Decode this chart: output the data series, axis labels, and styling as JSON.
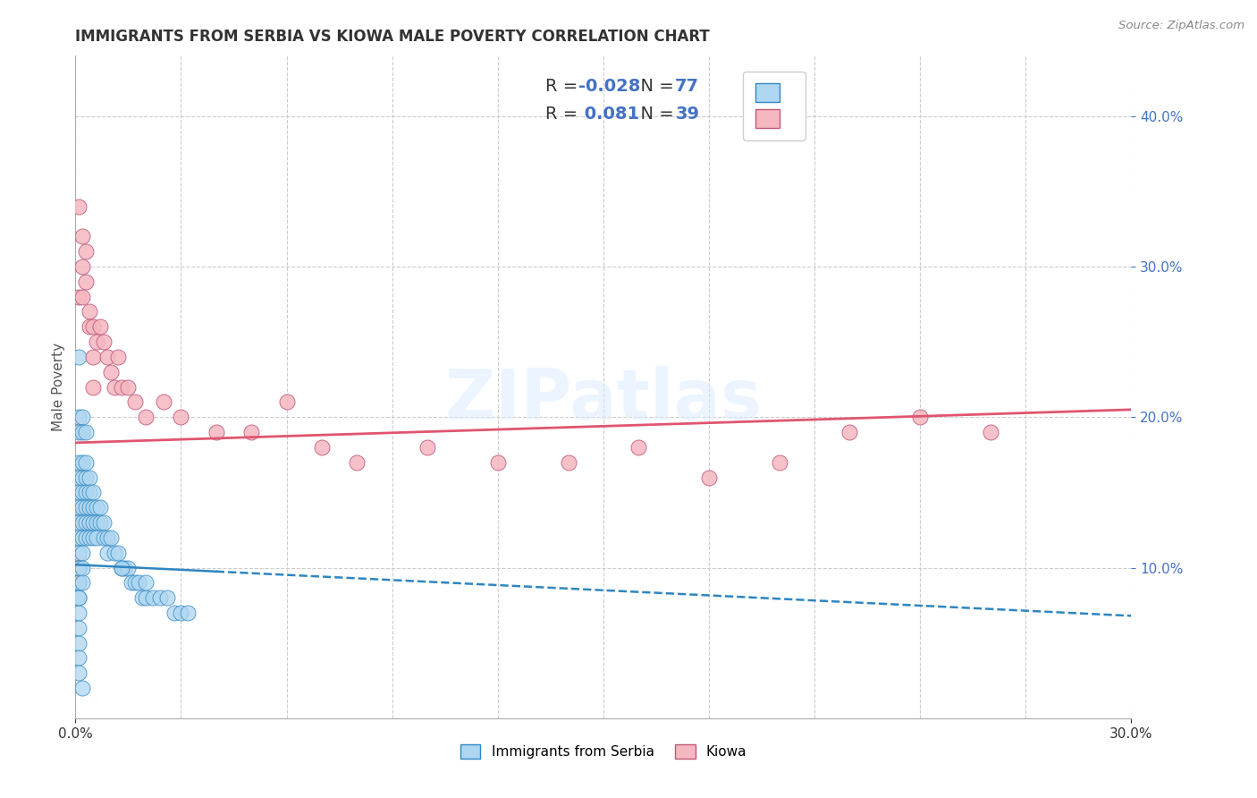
{
  "title": "IMMIGRANTS FROM SERBIA VS KIOWA MALE POVERTY CORRELATION CHART",
  "source_text": "Source: ZipAtlas.com",
  "xlim": [
    0.0,
    0.3
  ],
  "ylim": [
    0.0,
    0.44
  ],
  "ylabel": "Male Poverty",
  "legend_labels": [
    "Immigrants from Serbia",
    "Kiowa"
  ],
  "blue_R": -0.028,
  "blue_N": 77,
  "pink_R": 0.081,
  "pink_N": 39,
  "blue_color": "#AED6F1",
  "pink_color": "#F5B7C0",
  "blue_edge": "#2E86C1",
  "pink_edge": "#C0577A",
  "trend_blue_color": "#2E86C1",
  "trend_pink_color": "#E05570",
  "background_color": "#FFFFFF",
  "grid_color": "#CCCCCC",
  "blue_trend_x0": 0.0,
  "blue_trend_y0": 0.102,
  "blue_trend_x1": 0.3,
  "blue_trend_y1": 0.068,
  "pink_trend_x0": 0.0,
  "pink_trend_y0": 0.183,
  "pink_trend_x1": 0.3,
  "pink_trend_y1": 0.205,
  "blue_scatter_x": [
    0.001,
    0.001,
    0.001,
    0.001,
    0.001,
    0.001,
    0.001,
    0.001,
    0.001,
    0.001,
    0.001,
    0.001,
    0.001,
    0.001,
    0.001,
    0.001,
    0.001,
    0.002,
    0.002,
    0.002,
    0.002,
    0.002,
    0.002,
    0.002,
    0.002,
    0.002,
    0.003,
    0.003,
    0.003,
    0.003,
    0.003,
    0.003,
    0.004,
    0.004,
    0.004,
    0.004,
    0.004,
    0.005,
    0.005,
    0.005,
    0.005,
    0.006,
    0.006,
    0.006,
    0.007,
    0.007,
    0.008,
    0.008,
    0.009,
    0.009,
    0.01,
    0.011,
    0.012,
    0.013,
    0.014,
    0.015,
    0.016,
    0.017,
    0.018,
    0.019,
    0.02,
    0.022,
    0.024,
    0.026,
    0.028,
    0.03,
    0.032,
    0.001,
    0.001,
    0.001,
    0.002,
    0.002,
    0.003,
    0.013,
    0.02,
    0.001,
    0.002
  ],
  "blue_scatter_y": [
    0.17,
    0.16,
    0.15,
    0.14,
    0.13,
    0.12,
    0.11,
    0.1,
    0.09,
    0.08,
    0.07,
    0.06,
    0.05,
    0.04,
    0.08,
    0.09,
    0.1,
    0.17,
    0.16,
    0.15,
    0.14,
    0.13,
    0.12,
    0.11,
    0.1,
    0.09,
    0.17,
    0.16,
    0.15,
    0.14,
    0.13,
    0.12,
    0.16,
    0.15,
    0.14,
    0.13,
    0.12,
    0.15,
    0.14,
    0.13,
    0.12,
    0.14,
    0.13,
    0.12,
    0.14,
    0.13,
    0.13,
    0.12,
    0.12,
    0.11,
    0.12,
    0.11,
    0.11,
    0.1,
    0.1,
    0.1,
    0.09,
    0.09,
    0.09,
    0.08,
    0.08,
    0.08,
    0.08,
    0.08,
    0.07,
    0.07,
    0.07,
    0.24,
    0.2,
    0.19,
    0.2,
    0.19,
    0.19,
    0.1,
    0.09,
    0.03,
    0.02
  ],
  "pink_scatter_x": [
    0.001,
    0.001,
    0.002,
    0.002,
    0.002,
    0.003,
    0.003,
    0.004,
    0.004,
    0.005,
    0.005,
    0.005,
    0.006,
    0.007,
    0.008,
    0.009,
    0.01,
    0.011,
    0.012,
    0.013,
    0.015,
    0.017,
    0.02,
    0.025,
    0.03,
    0.04,
    0.05,
    0.06,
    0.07,
    0.08,
    0.1,
    0.12,
    0.14,
    0.16,
    0.18,
    0.2,
    0.22,
    0.24,
    0.26
  ],
  "pink_scatter_y": [
    0.34,
    0.28,
    0.32,
    0.3,
    0.28,
    0.31,
    0.29,
    0.27,
    0.26,
    0.26,
    0.24,
    0.22,
    0.25,
    0.26,
    0.25,
    0.24,
    0.23,
    0.22,
    0.24,
    0.22,
    0.22,
    0.21,
    0.2,
    0.21,
    0.2,
    0.19,
    0.19,
    0.21,
    0.18,
    0.17,
    0.18,
    0.17,
    0.17,
    0.18,
    0.16,
    0.17,
    0.19,
    0.2,
    0.19
  ]
}
